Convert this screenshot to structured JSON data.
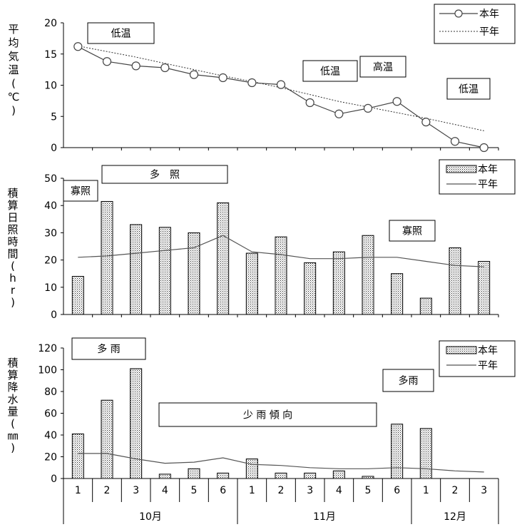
{
  "chart_data": [
    {
      "type": "line",
      "ylabel": "平均気温(℃)",
      "ylim": [
        0,
        20
      ],
      "yticks": [
        0,
        5,
        10,
        15,
        20
      ],
      "x": [
        1,
        2,
        3,
        4,
        5,
        6,
        7,
        8,
        9,
        10,
        11,
        12,
        13,
        14,
        15
      ],
      "series": [
        {
          "name": "本年",
          "values": [
            16.2,
            13.8,
            13.1,
            12.8,
            11.7,
            11.2,
            10.4,
            10.1,
            7.2,
            5.4,
            6.3,
            7.4,
            4.1,
            1.0,
            0.0
          ]
        },
        {
          "name": "平年",
          "values": [
            16.3,
            15.4,
            14.5,
            13.5,
            12.5,
            11.5,
            10.6,
            9.6,
            8.5,
            7.4,
            6.5,
            5.6,
            4.7,
            3.7,
            2.7
          ]
        }
      ],
      "annotations": [
        "低温",
        "低温",
        "高温",
        "低温"
      ]
    },
    {
      "type": "bar",
      "ylabel": "積算日照時間(hr)",
      "ylim": [
        0,
        50
      ],
      "yticks": [
        0,
        10,
        20,
        30,
        40,
        50
      ],
      "series": [
        {
          "name": "本年",
          "values": [
            14,
            41.5,
            33,
            32,
            30,
            41,
            22.5,
            28.5,
            19,
            23,
            29,
            15,
            6,
            24.5,
            19.5
          ]
        },
        {
          "name": "平年",
          "values": [
            21,
            21.5,
            22.5,
            23.5,
            24.5,
            29,
            23,
            22,
            20.5,
            20.5,
            21,
            21,
            19.5,
            18,
            17.5
          ]
        }
      ],
      "annotations": [
        "寡照",
        "多　照",
        "寡照"
      ]
    },
    {
      "type": "bar",
      "ylabel": "積算降水量(㎜)",
      "ylim": [
        0,
        120
      ],
      "yticks": [
        0,
        20,
        40,
        60,
        80,
        100,
        120
      ],
      "categories": [
        "1",
        "2",
        "3",
        "4",
        "5",
        "6",
        "1",
        "2",
        "3",
        "4",
        "5",
        "6",
        "1",
        "2",
        "3"
      ],
      "groups": [
        {
          "label": "10月",
          "span": 6
        },
        {
          "label": "11月",
          "span": 6
        },
        {
          "label": "12月",
          "span": 3
        }
      ],
      "series": [
        {
          "name": "本年",
          "values": [
            41,
            72,
            101,
            4,
            9,
            5,
            18,
            5,
            5,
            7,
            2,
            50,
            46,
            0,
            0
          ]
        },
        {
          "name": "平年",
          "values": [
            23,
            23,
            18,
            14,
            15,
            19,
            13,
            12,
            10,
            9,
            9,
            10,
            9,
            7,
            6
          ]
        }
      ],
      "annotations": [
        "多 雨",
        "少 雨 傾 向",
        "多雨"
      ]
    }
  ]
}
